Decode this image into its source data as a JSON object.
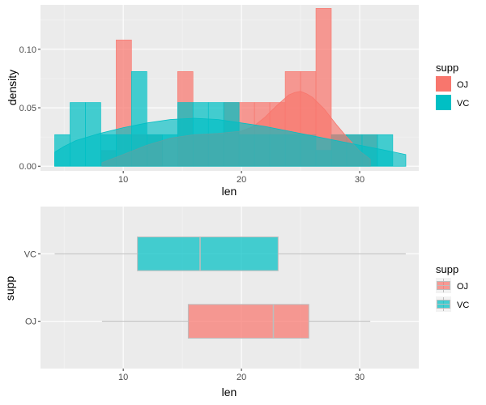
{
  "chart_data": [
    {
      "type": "histogram",
      "subtype": "histogram-with-density",
      "xlabel": "len",
      "ylabel": "density",
      "xlim": [
        3,
        35
      ],
      "ylim": [
        -0.004,
        0.138
      ],
      "x_ticks": [
        "10",
        "20",
        "30"
      ],
      "x_tick_values": [
        10,
        20,
        30
      ],
      "y_ticks": [
        "0.00",
        "0.05",
        "0.10"
      ],
      "y_tick_values": [
        0,
        0.05,
        0.1
      ],
      "grid": true,
      "legend": {
        "title": "supp",
        "position": "right",
        "entries": [
          "OJ",
          "VC"
        ]
      },
      "bins": {
        "edges": [
          4.2,
          5.5,
          6.8,
          8.1,
          9.4,
          10.7,
          12.0,
          13.3,
          14.6,
          15.9,
          17.2,
          18.5,
          19.8,
          21.1,
          22.4,
          23.7,
          25.0,
          26.3,
          27.6,
          28.9,
          30.2,
          31.5,
          32.8
        ]
      },
      "series": [
        {
          "name": "OJ",
          "color": "#F8766D",
          "hist_values": [
            0,
            0,
            0,
            0.0135,
            0.108,
            0.027,
            0.027,
            0,
            0.081,
            0.027,
            0.027,
            0.0545,
            0.0545,
            0.0545,
            0.0545,
            0.081,
            0.081,
            0.135,
            0.027,
            0.027,
            0.027,
            0
          ],
          "density": {
            "x": [
              8.2,
              10,
              12,
              14,
              16,
              18,
              20,
              21,
              22,
              23,
              24,
              24.5,
              25,
              25.5,
              26,
              27,
              28,
              29,
              30,
              30.9
            ],
            "y": [
              0.003,
              0.01,
              0.018,
              0.024,
              0.027,
              0.028,
              0.03,
              0.034,
              0.042,
              0.052,
              0.061,
              0.063,
              0.064,
              0.062,
              0.059,
              0.049,
              0.036,
              0.024,
              0.013,
              0.006
            ]
          }
        },
        {
          "name": "VC",
          "color": "#00BFC4",
          "hist_values": [
            0.027,
            0.0545,
            0.0545,
            0.027,
            0.027,
            0.081,
            0.027,
            0.027,
            0.0545,
            0.0545,
            0.0545,
            0.0545,
            0.027,
            0.027,
            0.027,
            0.027,
            0.027,
            0.0135,
            0.027,
            0.027,
            0.027,
            0.027
          ],
          "density": {
            "x": [
              4.2,
              5,
              6,
              8,
              10,
              12,
              14,
              16,
              18,
              20,
              22,
              24,
              26,
              28,
              30,
              32,
              33.9
            ],
            "y": [
              0.012,
              0.017,
              0.022,
              0.028,
              0.033,
              0.037,
              0.04,
              0.041,
              0.04,
              0.037,
              0.034,
              0.03,
              0.026,
              0.022,
              0.018,
              0.014,
              0.01
            ]
          }
        }
      ]
    },
    {
      "type": "boxplot",
      "orientation": "horizontal",
      "xlabel": "len",
      "ylabel": "supp",
      "xlim": [
        3,
        35
      ],
      "x_ticks": [
        "10",
        "20",
        "30"
      ],
      "x_tick_values": [
        10,
        20,
        30
      ],
      "categories": [
        "OJ",
        "VC"
      ],
      "grid": true,
      "legend": {
        "title": "supp",
        "position": "right",
        "entries": [
          "OJ",
          "VC"
        ]
      },
      "series": [
        {
          "name": "OJ",
          "color": "#F8766D",
          "min": 8.2,
          "q1": 15.5,
          "median": 22.7,
          "q3": 25.7,
          "max": 30.9
        },
        {
          "name": "VC",
          "color": "#00BFC4",
          "min": 4.2,
          "q1": 11.2,
          "median": 16.5,
          "q3": 23.1,
          "max": 33.9
        }
      ]
    }
  ]
}
